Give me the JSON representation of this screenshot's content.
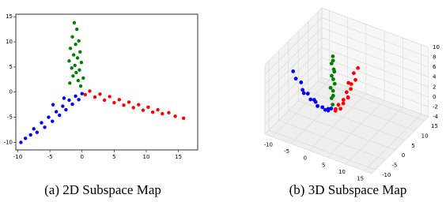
{
  "chart_data": [
    {
      "type": "scatter",
      "caption": "(a) 2D Subspace Map",
      "xlim": [
        -10.3,
        18
      ],
      "ylim": [
        -11.5,
        15.5
      ],
      "xticks": [
        -10,
        -5,
        0,
        5,
        10,
        15
      ],
      "yticks": [
        -10,
        -5,
        0,
        5,
        10,
        15
      ],
      "series": [
        {
          "color": "#008000",
          "x": [
            -1.2,
            -0.8,
            -1.5,
            -0.5,
            -1.0,
            -1.8,
            -0.3,
            -1.3,
            -0.7,
            -2.0,
            -0.1,
            -1.1,
            -1.6,
            -0.4,
            -0.9,
            -1.4,
            0.2,
            -0.6,
            -1.9,
            -0.2
          ],
          "values": [
            13.8,
            12.5,
            11.0,
            10.2,
            9.5,
            8.7,
            8.0,
            7.4,
            6.8,
            6.2,
            5.9,
            5.3,
            4.8,
            4.4,
            3.9,
            3.2,
            2.8,
            2.3,
            1.8,
            1.2
          ]
        },
        {
          "color": "#0000ff",
          "x": [
            -9.5,
            -8.8,
            -8.0,
            -7.5,
            -7.0,
            -6.3,
            -5.8,
            -5.2,
            -4.6,
            -4.0,
            -3.5,
            -3.0,
            -2.5,
            -2.0,
            -1.5,
            -1.0,
            -0.5,
            0.0,
            -2.8,
            -4.5
          ],
          "values": [
            -10,
            -9.2,
            -8.5,
            -7.3,
            -8.0,
            -6.1,
            -7.0,
            -5.0,
            -5.8,
            -3.9,
            -4.6,
            -2.8,
            -3.5,
            -1.6,
            -2.4,
            -0.8,
            -1.5,
            -0.3,
            -1.2,
            -2.5
          ]
        },
        {
          "color": "#ff0000",
          "x": [
            0.5,
            1.2,
            2.0,
            2.8,
            3.5,
            4.3,
            5.0,
            5.8,
            6.5,
            7.3,
            8.0,
            8.8,
            9.5,
            10.3,
            11.0,
            11.8,
            12.5,
            13.5,
            14.5,
            15.8
          ],
          "values": [
            -0.5,
            0.2,
            -1.0,
            -0.4,
            -1.6,
            -0.9,
            -2.1,
            -1.5,
            -2.6,
            -2.0,
            -3.1,
            -2.5,
            -3.6,
            -3.0,
            -4.0,
            -3.5,
            -4.3,
            -4.1,
            -4.8,
            -5.2
          ]
        }
      ]
    },
    {
      "type": "scatter3d",
      "caption": "(b) 3D Subspace Map",
      "xlim": [
        -12,
        17
      ],
      "ylim": [
        -12,
        17
      ],
      "zlim": [
        -4,
        10
      ],
      "xticks": [
        -10,
        -5,
        0,
        5,
        10,
        15
      ],
      "yticks": [
        -10,
        -5,
        0,
        5,
        10,
        15
      ],
      "zticks": [
        -4,
        -2,
        0,
        2,
        4,
        6,
        8,
        10
      ],
      "series": [
        {
          "color": "#008000",
          "x": [
            0,
            -0.5,
            0.3,
            0,
            -0.3,
            0.5,
            0,
            -0.2,
            0.2,
            0.4,
            -0.4,
            0.1,
            0
          ],
          "y": [
            0,
            0.4,
            -0.3,
            0.2,
            -0.5,
            0.1,
            0.3,
            -0.1,
            0.5,
            -0.2,
            0.2,
            0,
            0.1
          ],
          "z": [
            0.5,
            1.5,
            2.5,
            3.2,
            4.0,
            4.8,
            5.5,
            6.3,
            7.0,
            7.8,
            8.6,
            9.4,
            10.2
          ]
        },
        {
          "color": "#0000ff",
          "x": [
            -11,
            -10,
            -9,
            -8,
            -7,
            -6,
            -5,
            -4,
            -3,
            -2,
            -1.5,
            -1,
            -0.5,
            -7.5,
            -5.5
          ],
          "y": [
            0.5,
            0,
            0.8,
            -0.3,
            0.5,
            0,
            0.7,
            -0.2,
            0.4,
            0,
            0.6,
            -0.4,
            0.2,
            -0.6,
            0.9
          ],
          "z": [
            4,
            3,
            2.2,
            1.4,
            0.6,
            -0.1,
            -0.6,
            -0.8,
            -1.0,
            -1.1,
            -1.0,
            -0.8,
            -0.5,
            1.0,
            -0.4
          ]
        },
        {
          "color": "#ff0000",
          "x": [
            0.5,
            0,
            0.8,
            -0.3,
            0.5,
            0,
            0.7,
            -0.2,
            0.4,
            0,
            0.6,
            -0.4,
            0.2,
            1,
            -0.5
          ],
          "y": [
            0.5,
            1.5,
            2.5,
            3.5,
            4.5,
            5.5,
            6.5,
            7.5,
            8.5,
            9.5,
            10.5,
            11.5,
            12.5,
            6,
            9
          ],
          "z": [
            -0.8,
            -1.0,
            -1.1,
            -1.0,
            -0.9,
            -0.7,
            -0.4,
            0,
            0.4,
            0.9,
            1.5,
            2.2,
            3.0,
            -0.2,
            1.2
          ]
        }
      ]
    }
  ]
}
